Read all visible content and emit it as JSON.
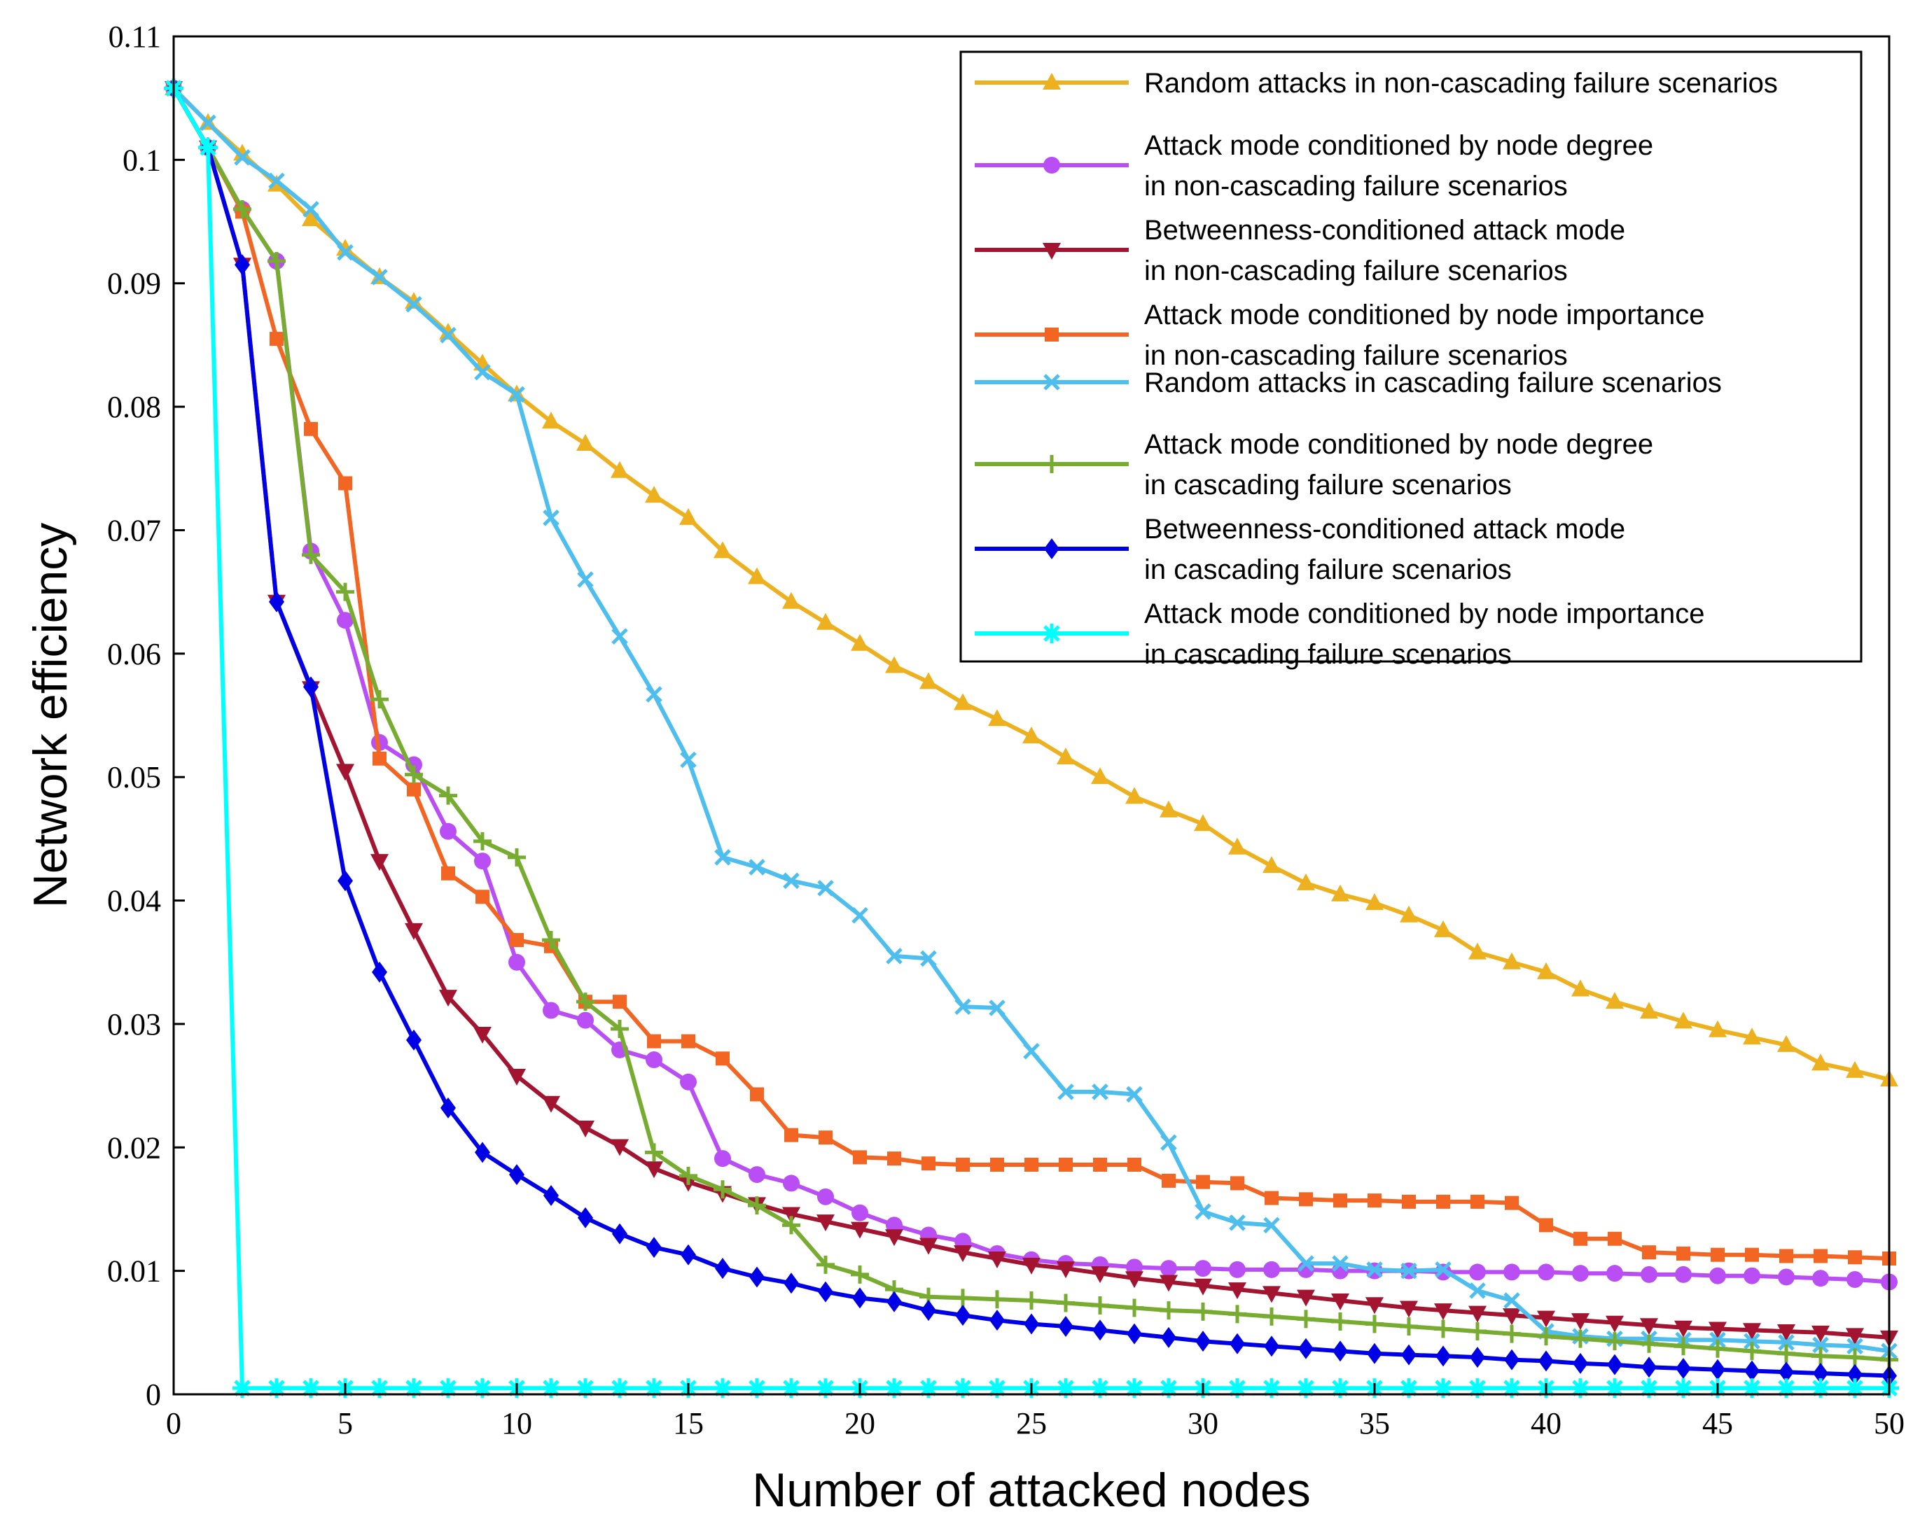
{
  "chart_data": {
    "type": "line",
    "title": "",
    "xlabel": "Number of attacked nodes",
    "ylabel": "Network efficiency",
    "xlim": [
      0,
      50
    ],
    "ylim": [
      0,
      0.11
    ],
    "xticks": [
      0,
      5,
      10,
      15,
      20,
      25,
      30,
      35,
      40,
      45,
      50
    ],
    "xtick_labels": [
      "0",
      "5",
      "10",
      "15",
      "20",
      "25",
      "30",
      "35",
      "40",
      "45",
      "50"
    ],
    "yticks": [
      0,
      0.01,
      0.02,
      0.03,
      0.04,
      0.05,
      0.06,
      0.07,
      0.08,
      0.09,
      0.1,
      0.11
    ],
    "ytick_labels": [
      "0",
      "0.01",
      "0.02",
      "0.03",
      "0.04",
      "0.05",
      "0.06",
      "0.07",
      "0.08",
      "0.09",
      "0.1",
      "0.11"
    ],
    "grid": false,
    "legend_position": "top-right",
    "x": [
      0,
      1,
      2,
      3,
      4,
      5,
      6,
      7,
      8,
      9,
      10,
      11,
      12,
      13,
      14,
      15,
      16,
      17,
      18,
      19,
      20,
      21,
      22,
      23,
      24,
      25,
      26,
      27,
      28,
      29,
      30,
      31,
      32,
      33,
      34,
      35,
      36,
      37,
      38,
      39,
      40,
      41,
      42,
      43,
      44,
      45,
      46,
      47,
      48,
      49,
      50
    ],
    "series": [
      {
        "name": "Random attacks in non-cascading failure scenarios",
        "legend_lines": [
          "Random attacks in non-cascading failure scenarios"
        ],
        "color": "#EDB120",
        "marker": "triangle-up",
        "values": [
          0.1058,
          0.103,
          0.1005,
          0.098,
          0.0952,
          0.0928,
          0.0905,
          0.0885,
          0.086,
          0.0835,
          0.081,
          0.0788,
          0.077,
          0.0748,
          0.0728,
          0.071,
          0.0683,
          0.0662,
          0.0642,
          0.0625,
          0.0608,
          0.059,
          0.0577,
          0.056,
          0.0547,
          0.0533,
          0.0516,
          0.05,
          0.0484,
          0.0473,
          0.0462,
          0.0443,
          0.0428,
          0.0414,
          0.0405,
          0.0398,
          0.0388,
          0.0376,
          0.0358,
          0.035,
          0.0342,
          0.0328,
          0.0318,
          0.031,
          0.0302,
          0.0295,
          0.0289,
          0.0283,
          0.0268,
          0.0262,
          0.0255
        ]
      },
      {
        "name": "Attack mode conditioned by node degree in non-cascading failure scenarios",
        "legend_lines": [
          "Attack mode conditioned by node degree",
          "in non-cascading failure scenarios"
        ],
        "color": "#B94EF5",
        "marker": "circle",
        "values": [
          0.1058,
          0.101,
          0.096,
          0.0918,
          0.0683,
          0.0627,
          0.0528,
          0.051,
          0.0456,
          0.0432,
          0.035,
          0.0311,
          0.0303,
          0.0279,
          0.0271,
          0.0253,
          0.0191,
          0.0178,
          0.0171,
          0.016,
          0.0147,
          0.0137,
          0.0129,
          0.0124,
          0.0114,
          0.0109,
          0.0106,
          0.0105,
          0.0103,
          0.0102,
          0.0102,
          0.0101,
          0.0101,
          0.0101,
          0.01,
          0.01,
          0.01,
          0.0099,
          0.0099,
          0.0099,
          0.0099,
          0.0098,
          0.0098,
          0.0097,
          0.0097,
          0.0096,
          0.0096,
          0.0095,
          0.0094,
          0.0093,
          0.0091
        ]
      },
      {
        "name": "Betweenness-conditioned attack mode in non-cascading failure scenarios",
        "legend_lines": [
          "Betweenness-conditioned attack mode",
          "in non-cascading failure scenarios"
        ],
        "color": "#A2142F",
        "marker": "triangle-down",
        "values": [
          0.1058,
          0.101,
          0.0915,
          0.0642,
          0.0572,
          0.0505,
          0.0432,
          0.0376,
          0.0322,
          0.0292,
          0.0258,
          0.0236,
          0.0216,
          0.0201,
          0.0183,
          0.0172,
          0.0163,
          0.0154,
          0.0146,
          0.014,
          0.0134,
          0.0128,
          0.0121,
          0.0115,
          0.011,
          0.0105,
          0.0102,
          0.0098,
          0.0094,
          0.0091,
          0.0088,
          0.0085,
          0.0082,
          0.0079,
          0.0076,
          0.0073,
          0.007,
          0.0068,
          0.0066,
          0.0064,
          0.0062,
          0.006,
          0.0058,
          0.0056,
          0.0054,
          0.0053,
          0.0052,
          0.0051,
          0.005,
          0.0048,
          0.0046
        ]
      },
      {
        "name": "Attack mode conditioned by node importance in non-cascading failure scenarios",
        "legend_lines": [
          "Attack mode conditioned by node importance",
          "in non-cascading failure scenarios"
        ],
        "color": "#F26522",
        "marker": "square",
        "values": [
          0.1058,
          0.101,
          0.0958,
          0.0855,
          0.0782,
          0.0738,
          0.0515,
          0.049,
          0.0422,
          0.0403,
          0.0368,
          0.0363,
          0.0318,
          0.0318,
          0.0286,
          0.0286,
          0.0272,
          0.0243,
          0.021,
          0.0208,
          0.0192,
          0.0191,
          0.0187,
          0.0186,
          0.0186,
          0.0186,
          0.0186,
          0.0186,
          0.0186,
          0.0173,
          0.0172,
          0.0171,
          0.0159,
          0.0158,
          0.0157,
          0.0157,
          0.0156,
          0.0156,
          0.0156,
          0.0155,
          0.0137,
          0.0126,
          0.0126,
          0.0115,
          0.0114,
          0.0113,
          0.0113,
          0.0112,
          0.0112,
          0.0111,
          0.011
        ]
      },
      {
        "name": "Random attacks in cascading failure scenarios",
        "legend_lines": [
          "Random attacks in cascading failure scenarios"
        ],
        "color": "#4DBEEE",
        "marker": "x",
        "values": [
          0.1058,
          0.103,
          0.1002,
          0.0983,
          0.096,
          0.0925,
          0.0905,
          0.0883,
          0.0858,
          0.0828,
          0.081,
          0.071,
          0.066,
          0.0614,
          0.0567,
          0.0514,
          0.0435,
          0.0427,
          0.0416,
          0.041,
          0.0388,
          0.0355,
          0.0353,
          0.0314,
          0.0313,
          0.0278,
          0.0245,
          0.0245,
          0.0243,
          0.0204,
          0.0148,
          0.0139,
          0.0137,
          0.0106,
          0.0106,
          0.0101,
          0.01,
          0.0101,
          0.0084,
          0.0076,
          0.0051,
          0.0047,
          0.0045,
          0.0045,
          0.0044,
          0.0044,
          0.0043,
          0.0042,
          0.004,
          0.0039,
          0.0035
        ]
      },
      {
        "name": "Attack mode conditioned by node degree in cascading failure scenarios",
        "legend_lines": [
          "Attack mode conditioned by node degree",
          "in cascading failure scenarios"
        ],
        "color": "#77AC30",
        "marker": "plus",
        "values": [
          0.1058,
          0.101,
          0.096,
          0.0918,
          0.068,
          0.065,
          0.0563,
          0.0502,
          0.0485,
          0.0448,
          0.0435,
          0.0368,
          0.0318,
          0.0296,
          0.0196,
          0.0177,
          0.0166,
          0.0153,
          0.0137,
          0.0105,
          0.0097,
          0.0085,
          0.0079,
          0.0078,
          0.0077,
          0.0076,
          0.0074,
          0.0072,
          0.007,
          0.0068,
          0.0067,
          0.0065,
          0.0063,
          0.0061,
          0.0059,
          0.0057,
          0.0055,
          0.0053,
          0.0051,
          0.0049,
          0.0047,
          0.0045,
          0.0043,
          0.0041,
          0.0039,
          0.0037,
          0.0035,
          0.0033,
          0.0031,
          0.003,
          0.0028
        ]
      },
      {
        "name": "Betweenness-conditioned attack mode in cascading failure scenarios",
        "legend_lines": [
          "Betweenness-conditioned attack mode",
          "in cascading failure scenarios"
        ],
        "color": "#0000E6",
        "marker": "diamond",
        "values": [
          0.1058,
          0.101,
          0.0915,
          0.0642,
          0.0573,
          0.0416,
          0.0342,
          0.0287,
          0.0232,
          0.0196,
          0.0178,
          0.0161,
          0.0143,
          0.013,
          0.0119,
          0.0113,
          0.0102,
          0.0095,
          0.009,
          0.0083,
          0.0078,
          0.0075,
          0.0068,
          0.0064,
          0.006,
          0.0057,
          0.0055,
          0.0052,
          0.0049,
          0.0046,
          0.0043,
          0.0041,
          0.0039,
          0.0037,
          0.0035,
          0.0033,
          0.0032,
          0.0031,
          0.003,
          0.0028,
          0.0027,
          0.0025,
          0.0024,
          0.0022,
          0.0021,
          0.002,
          0.0019,
          0.0018,
          0.0017,
          0.0016,
          0.0015
        ]
      },
      {
        "name": "Attack mode conditioned by node importance in cascading failure scenarios",
        "legend_lines": [
          "Attack mode conditioned by node importance",
          "in cascading failure scenarios"
        ],
        "color": "#00FFFF",
        "marker": "asterisk",
        "values": [
          0.1058,
          0.101,
          0.0005,
          0.0005,
          0.0005,
          0.0005,
          0.0005,
          0.0005,
          0.0005,
          0.0005,
          0.0005,
          0.0005,
          0.0005,
          0.0005,
          0.0005,
          0.0005,
          0.0005,
          0.0005,
          0.0005,
          0.0005,
          0.0005,
          0.0005,
          0.0005,
          0.0005,
          0.0005,
          0.0005,
          0.0005,
          0.0005,
          0.0005,
          0.0005,
          0.0005,
          0.0005,
          0.0005,
          0.0005,
          0.0005,
          0.0005,
          0.0005,
          0.0005,
          0.0005,
          0.0005,
          0.0005,
          0.0005,
          0.0005,
          0.0005,
          0.0005,
          0.0005,
          0.0005,
          0.0005,
          0.0005,
          0.0005,
          0.0005
        ]
      }
    ]
  }
}
